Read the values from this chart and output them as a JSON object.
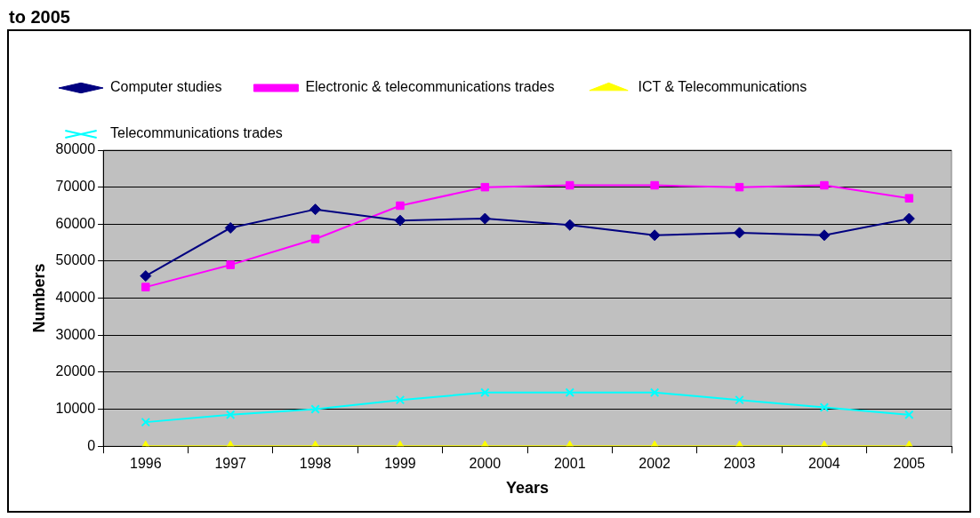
{
  "chart_data": {
    "type": "line",
    "title": "to 2005",
    "xlabel": "Years",
    "ylabel": "Numbers",
    "categories": [
      "1996",
      "1997",
      "1998",
      "1999",
      "2000",
      "2001",
      "2002",
      "2003",
      "2004",
      "2005"
    ],
    "series": [
      {
        "name": "Computer studies",
        "color": "#000080",
        "marker": "diamond",
        "values": [
          46000,
          59000,
          64000,
          61000,
          61500,
          59800,
          57000,
          57700,
          57000,
          61500
        ]
      },
      {
        "name": "Electronic & telecommunications trades",
        "color": "#ff00ff",
        "marker": "square",
        "values": [
          43000,
          49000,
          56000,
          65000,
          70000,
          70500,
          70500,
          70000,
          70500,
          67000
        ]
      },
      {
        "name": "ICT & Telecommunications",
        "color": "#ffff00",
        "marker": "triangle",
        "values": [
          0,
          0,
          0,
          0,
          0,
          0,
          0,
          0,
          0,
          0
        ]
      },
      {
        "name": "Telecommunications trades",
        "color": "#00ffff",
        "marker": "cross",
        "values": [
          6500,
          8500,
          10000,
          12500,
          14500,
          14500,
          14500,
          12500,
          10500,
          8500
        ]
      }
    ],
    "ylim": [
      0,
      80000
    ],
    "yticks": [
      0,
      10000,
      20000,
      30000,
      40000,
      50000,
      60000,
      70000,
      80000
    ],
    "grid": "y",
    "legend": "top"
  }
}
